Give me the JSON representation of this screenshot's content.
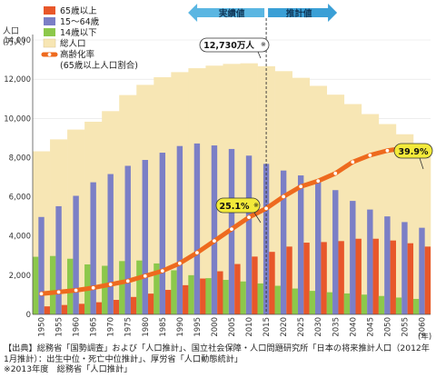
{
  "chart_data": {
    "type": "bar",
    "ylabel": "人口\n(万人)",
    "xlabel_unit": "(年)",
    "ylim": [
      0,
      14000
    ],
    "yticks": [
      "0",
      "2,000",
      "4,000",
      "6,000",
      "8,000",
      "10,000",
      "12,000",
      "14,000"
    ],
    "x": [
      "1950",
      "1955",
      "1960",
      "1965",
      "1970",
      "1975",
      "1980",
      "1985",
      "1990",
      "1995",
      "2000",
      "2005",
      "2010",
      "2015",
      "2020",
      "2025",
      "2030",
      "2035",
      "2040",
      "2045",
      "2050",
      "2055",
      "2060"
    ],
    "actual_years": [
      "1950",
      "1955",
      "1960",
      "1965",
      "1970",
      "1975",
      "1980",
      "1985",
      "1990",
      "1995",
      "2000",
      "2005",
      "2010"
    ],
    "header_actual": "実績値",
    "header_projection": "推計値",
    "series": [
      {
        "name": "65歳以上",
        "color": "#e8572a",
        "values": [
          410,
          480,
          540,
          620,
          740,
          890,
          1060,
          1250,
          1490,
          1830,
          2200,
          2570,
          2950,
          3190,
          3460,
          3660,
          3690,
          3740,
          3860,
          3860,
          3770,
          3630,
          3460
        ]
      },
      {
        "name": "15〜64歳",
        "color": "#7b7fc6",
        "values": [
          4970,
          5520,
          6050,
          6740,
          7160,
          7580,
          7880,
          8250,
          8590,
          8720,
          8620,
          8440,
          8100,
          7680,
          7340,
          7090,
          6770,
          6340,
          5790,
          5350,
          5000,
          4710,
          4420
        ]
      },
      {
        "name": "14歳以下",
        "color": "#8cc84b",
        "values": [
          2940,
          2980,
          2840,
          2550,
          2480,
          2720,
          2750,
          2600,
          2250,
          2000,
          1850,
          1760,
          1680,
          1580,
          1460,
          1320,
          1200,
          1130,
          1070,
          1010,
          940,
          860,
          790
        ]
      },
      {
        "name": "総人口",
        "color": "#f7e6b4",
        "values": [
          8320,
          8930,
          9430,
          9830,
          10370,
          11190,
          11710,
          12100,
          12360,
          12560,
          12690,
          12780,
          12810,
          12660,
          12410,
          12070,
          11660,
          11210,
          10730,
          10220,
          9710,
          9190,
          8670
        ]
      }
    ],
    "line_series": {
      "name": "高齢化率",
      "name_sub": "(65歳以上人口割合)",
      "color": "#ee6a1e",
      "values": [
        4.9,
        5.3,
        5.7,
        6.3,
        7.1,
        7.9,
        9.1,
        10.3,
        12.1,
        14.6,
        17.4,
        20.2,
        23.0,
        25.1,
        27.9,
        30.3,
        31.6,
        33.4,
        36.1,
        37.7,
        38.8,
        39.4,
        39.9
      ]
    },
    "annotations": [
      {
        "text": "12,730万人",
        "mark": "※"
      },
      {
        "text": "25.1%",
        "mark": "※"
      },
      {
        "text": "39.9%",
        "mark": ""
      }
    ]
  },
  "source": "【出典】総務省「国勢調査」および「人口推計」、国立社会保障・人口問題研究所「日本の将来推計人口（2012年1月推計）：出生中位・死亡中位推計」、厚労省「人口動態統計」\n※2013年度　総務省「人口推計」"
}
